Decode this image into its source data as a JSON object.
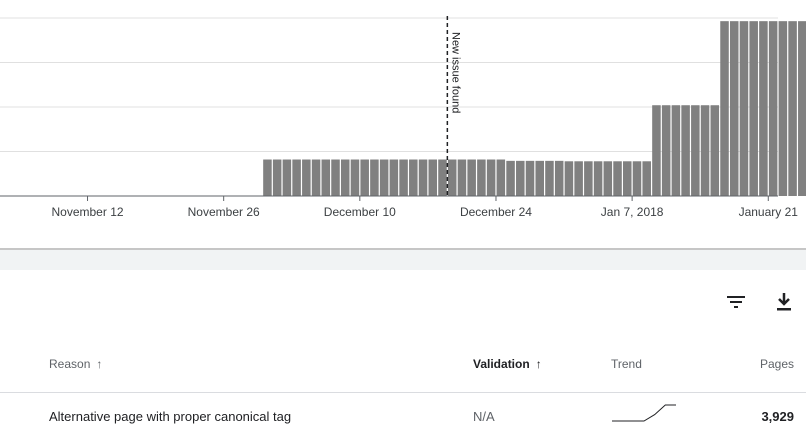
{
  "chart_data": {
    "type": "bar",
    "x": {
      "start": "2017-11-03",
      "end": "2018-01-22",
      "tick_labels": [
        {
          "date": "2017-11-12",
          "label": "November 12"
        },
        {
          "date": "2017-11-26",
          "label": "November 26"
        },
        {
          "date": "2017-12-10",
          "label": "December 10"
        },
        {
          "date": "2017-12-24",
          "label": "December 24"
        },
        {
          "date": "2018-01-07",
          "label": "Jan 7, 2018"
        },
        {
          "date": "2018-01-21",
          "label": "January 21"
        }
      ]
    },
    "series": [
      {
        "first_date": "2017-11-30",
        "values": [
          820,
          820,
          820,
          820,
          820,
          820,
          820,
          820,
          820,
          820,
          820,
          820,
          820,
          820,
          820,
          820,
          820,
          820,
          820,
          820,
          820,
          820,
          820,
          820,
          820,
          790,
          790,
          790,
          790,
          790,
          790,
          780,
          780,
          780,
          780,
          780,
          780,
          780,
          780,
          780,
          2040,
          2040,
          2040,
          2040,
          2040,
          2040,
          2040,
          3929,
          3929,
          3929,
          3929,
          3929,
          3929,
          3929,
          3929,
          3929,
          3929
        ]
      }
    ],
    "ylim": [
      0,
      4000
    ],
    "gridlines": [
      1000,
      2000,
      3000,
      4000
    ],
    "grid": true,
    "bar_color": "#808080",
    "annotations": [
      {
        "date": "2017-12-19",
        "label": "New issue found",
        "style": "dashed-vertical"
      }
    ]
  },
  "toolbar": {
    "filter_icon": "filter-icon",
    "download_icon": "download-icon"
  },
  "table": {
    "columns": [
      {
        "label": "Reason",
        "sort": "↑"
      },
      {
        "label": "Validation",
        "sort": "↑"
      },
      {
        "label": "Trend"
      },
      {
        "label": "Pages"
      }
    ],
    "rows": [
      {
        "reason": "Alternative page with proper canonical tag",
        "validation": "N/A",
        "trend": [
          10,
          10,
          10,
          10,
          18,
          30,
          30
        ],
        "pages": "3,929"
      }
    ]
  }
}
